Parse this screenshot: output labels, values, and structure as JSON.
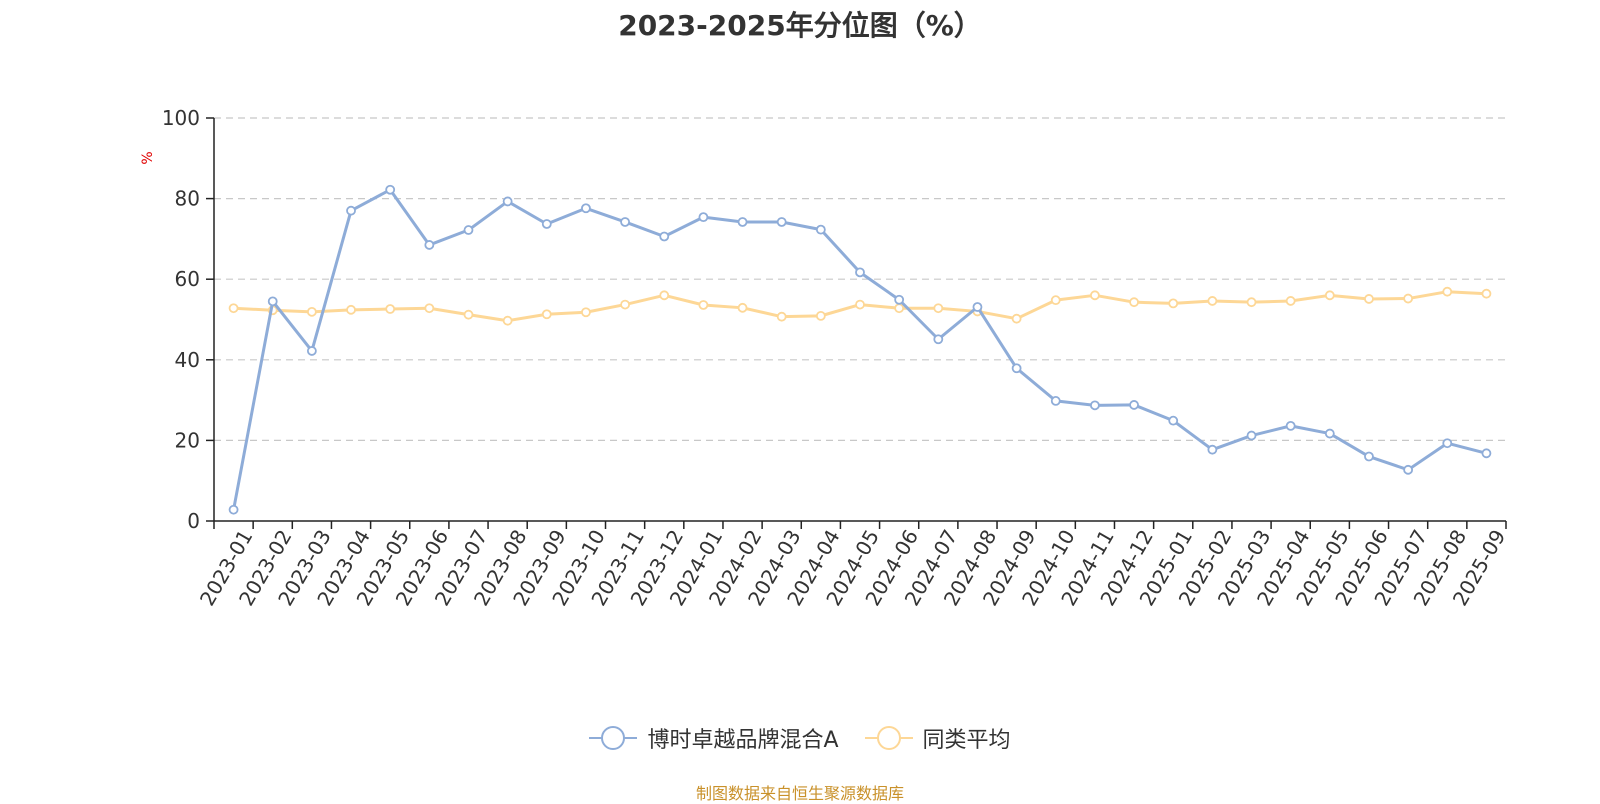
{
  "colors": {
    "series1": "#8eacd8",
    "series2": "#fdd796",
    "axis": "#222222",
    "grid": "#c8c8c8",
    "unit": "#e00000",
    "source": "#c9912a"
  },
  "source_text": "制图数据来自恒生聚源数据库",
  "chart_data": {
    "type": "line",
    "title": "2023-2025年分位图（%）",
    "ylabel": "%",
    "xlabel": "",
    "ylim": [
      0,
      100
    ],
    "yticks": [
      0,
      20,
      40,
      60,
      80,
      100
    ],
    "grid": true,
    "legend_position": "bottom-center",
    "categories": [
      "2023-01",
      "2023-02",
      "2023-03",
      "2023-04",
      "2023-05",
      "2023-06",
      "2023-07",
      "2023-08",
      "2023-09",
      "2023-10",
      "2023-11",
      "2023-12",
      "2024-01",
      "2024-02",
      "2024-03",
      "2024-04",
      "2024-05",
      "2024-06",
      "2024-07",
      "2024-08",
      "2024-09",
      "2024-10",
      "2024-11",
      "2024-12",
      "2025-01",
      "2025-02",
      "2025-03",
      "2025-04",
      "2025-05",
      "2025-06",
      "2025-07",
      "2025-08",
      "2025-09"
    ],
    "series": [
      {
        "name": "博时卓越品牌混合A",
        "color": "#8eacd8",
        "values": [
          2.8,
          54.5,
          42.2,
          77.0,
          82.2,
          68.5,
          72.2,
          79.3,
          73.7,
          77.6,
          74.2,
          70.6,
          75.4,
          74.2,
          74.2,
          72.3,
          61.7,
          54.9,
          45.1,
          53.1,
          37.9,
          29.8,
          28.7,
          28.8,
          24.9,
          17.7,
          21.2,
          23.6,
          21.7,
          16.0,
          12.7,
          19.3,
          16.8
        ]
      },
      {
        "name": "同类平均",
        "color": "#fdd796",
        "values": [
          52.8,
          52.3,
          51.9,
          52.4,
          52.6,
          52.8,
          51.2,
          49.7,
          51.3,
          51.8,
          53.7,
          56.0,
          53.6,
          52.9,
          50.7,
          50.9,
          53.7,
          52.8,
          52.8,
          52.0,
          50.2,
          54.8,
          56.0,
          54.3,
          54.0,
          54.6,
          54.3,
          54.6,
          56.0,
          55.1,
          55.2,
          56.9,
          56.4
        ]
      }
    ]
  }
}
